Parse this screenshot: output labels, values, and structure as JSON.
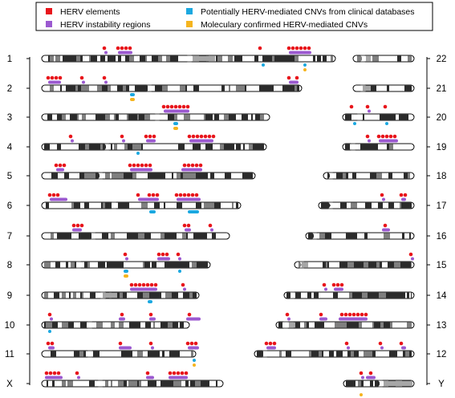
{
  "legend": {
    "items": [
      {
        "label": "HERV elements",
        "color": "#e8151b"
      },
      {
        "label": "HERV instability regions",
        "color": "#9b59d0"
      },
      {
        "label": "Potentially HERV-mediated CNVs from clinical databases",
        "color": "#1ba8e0"
      },
      {
        "label": "Moleculary confirmed HERV-mediated CNVs",
        "color": "#f5b41e"
      }
    ]
  },
  "colors": {
    "herv": "#e8151b",
    "instability": "#9b59d0",
    "clinical_cnv": "#1ba8e0",
    "confirmed_cnv": "#f5b41e",
    "band_dark": "#2b2b2b",
    "band_mid": "#7f7f7f",
    "band_light": "#ffffff",
    "heterochromatin": "#a6a6a6"
  },
  "left_labels": [
    "1",
    "2",
    "3",
    "4",
    "5",
    "6",
    "7",
    "8",
    "9",
    "10",
    "11",
    "X"
  ],
  "right_labels": [
    "22",
    "21",
    "20",
    "19",
    "18",
    "17",
    "16",
    "15",
    "14",
    "13",
    "12",
    "Y"
  ]
}
